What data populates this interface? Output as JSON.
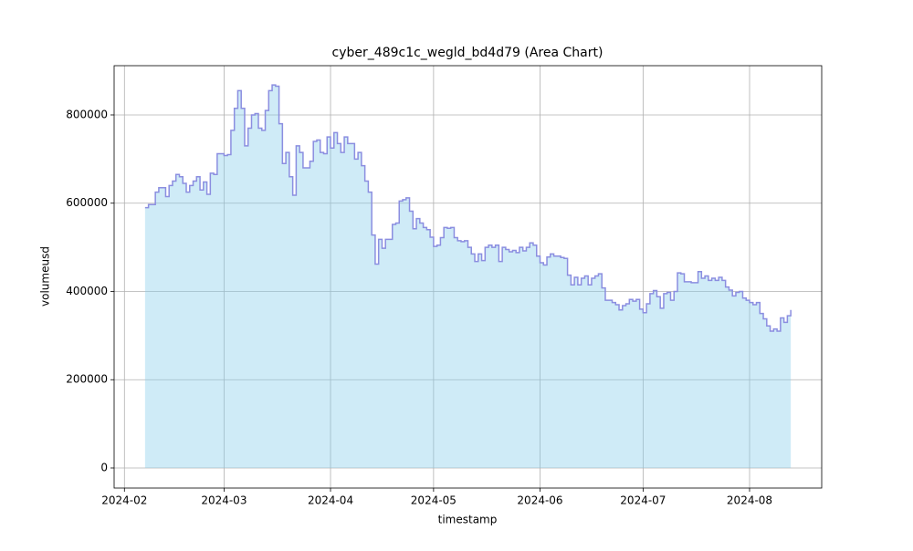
{
  "chart_data": {
    "type": "area",
    "step": "post",
    "title": "cyber_489c1c_wegld_bd4d79 (Area Chart)",
    "xlabel": "timestamp",
    "ylabel": "volumeusd",
    "x": [
      "2024-02-07",
      "2024-02-08",
      "2024-02-09",
      "2024-02-10",
      "2024-02-11",
      "2024-02-12",
      "2024-02-13",
      "2024-02-14",
      "2024-02-15",
      "2024-02-16",
      "2024-02-17",
      "2024-02-18",
      "2024-02-19",
      "2024-02-20",
      "2024-02-21",
      "2024-02-22",
      "2024-02-23",
      "2024-02-24",
      "2024-02-25",
      "2024-02-26",
      "2024-02-27",
      "2024-02-28",
      "2024-02-29",
      "2024-03-01",
      "2024-03-02",
      "2024-03-03",
      "2024-03-04",
      "2024-03-05",
      "2024-03-06",
      "2024-03-07",
      "2024-03-08",
      "2024-03-09",
      "2024-03-10",
      "2024-03-11",
      "2024-03-12",
      "2024-03-13",
      "2024-03-14",
      "2024-03-15",
      "2024-03-16",
      "2024-03-17",
      "2024-03-18",
      "2024-03-19",
      "2024-03-20",
      "2024-03-21",
      "2024-03-22",
      "2024-03-23",
      "2024-03-24",
      "2024-03-25",
      "2024-03-26",
      "2024-03-27",
      "2024-03-28",
      "2024-03-29",
      "2024-03-30",
      "2024-03-31",
      "2024-04-01",
      "2024-04-02",
      "2024-04-03",
      "2024-04-04",
      "2024-04-05",
      "2024-04-06",
      "2024-04-07",
      "2024-04-08",
      "2024-04-09",
      "2024-04-10",
      "2024-04-11",
      "2024-04-12",
      "2024-04-13",
      "2024-04-14",
      "2024-04-15",
      "2024-04-16",
      "2024-04-17",
      "2024-04-18",
      "2024-04-19",
      "2024-04-20",
      "2024-04-21",
      "2024-04-22",
      "2024-04-23",
      "2024-04-24",
      "2024-04-25",
      "2024-04-26",
      "2024-04-27",
      "2024-04-28",
      "2024-04-29",
      "2024-04-30",
      "2024-05-01",
      "2024-05-02",
      "2024-05-03",
      "2024-05-04",
      "2024-05-05",
      "2024-05-06",
      "2024-05-07",
      "2024-05-08",
      "2024-05-09",
      "2024-05-10",
      "2024-05-11",
      "2024-05-12",
      "2024-05-13",
      "2024-05-14",
      "2024-05-15",
      "2024-05-16",
      "2024-05-17",
      "2024-05-18",
      "2024-05-19",
      "2024-05-20",
      "2024-05-21",
      "2024-05-22",
      "2024-05-23",
      "2024-05-24",
      "2024-05-25",
      "2024-05-26",
      "2024-05-27",
      "2024-05-28",
      "2024-05-29",
      "2024-05-30",
      "2024-05-31",
      "2024-06-01",
      "2024-06-02",
      "2024-06-03",
      "2024-06-04",
      "2024-06-05",
      "2024-06-06",
      "2024-06-07",
      "2024-06-08",
      "2024-06-09",
      "2024-06-10",
      "2024-06-11",
      "2024-06-12",
      "2024-06-13",
      "2024-06-14",
      "2024-06-15",
      "2024-06-16",
      "2024-06-17",
      "2024-06-18",
      "2024-06-19",
      "2024-06-20",
      "2024-06-21",
      "2024-06-22",
      "2024-06-23",
      "2024-06-24",
      "2024-06-25",
      "2024-06-26",
      "2024-06-27",
      "2024-06-28",
      "2024-06-29",
      "2024-06-30",
      "2024-07-01",
      "2024-07-02",
      "2024-07-03",
      "2024-07-04",
      "2024-07-05",
      "2024-07-06",
      "2024-07-07",
      "2024-07-08",
      "2024-07-09",
      "2024-07-10",
      "2024-07-11",
      "2024-07-12",
      "2024-07-13",
      "2024-07-14",
      "2024-07-15",
      "2024-07-16",
      "2024-07-17",
      "2024-07-18",
      "2024-07-19",
      "2024-07-20",
      "2024-07-21",
      "2024-07-22",
      "2024-07-23",
      "2024-07-24",
      "2024-07-25",
      "2024-07-26",
      "2024-07-27",
      "2024-07-28",
      "2024-07-29",
      "2024-07-30",
      "2024-07-31",
      "2024-08-01",
      "2024-08-02",
      "2024-08-03",
      "2024-08-04",
      "2024-08-05",
      "2024-08-06",
      "2024-08-07",
      "2024-08-08",
      "2024-08-09",
      "2024-08-10",
      "2024-08-11",
      "2024-08-12",
      "2024-08-13"
    ],
    "series": [
      {
        "name": "volumeusd",
        "color": "#8b8ee0",
        "fill": "#87ceeb",
        "fill_alpha": 0.4,
        "values": [
          590000,
          597000,
          597000,
          625000,
          635000,
          635000,
          615000,
          640000,
          650000,
          665000,
          660000,
          645000,
          625000,
          640000,
          650000,
          660000,
          630000,
          648000,
          620000,
          668000,
          665000,
          712000,
          712000,
          708000,
          710000,
          765000,
          815000,
          855000,
          815000,
          730000,
          770000,
          800000,
          803000,
          770000,
          765000,
          810000,
          855000,
          868000,
          865000,
          780000,
          690000,
          715000,
          660000,
          618000,
          730000,
          715000,
          680000,
          680000,
          695000,
          740000,
          743000,
          715000,
          712000,
          750000,
          725000,
          760000,
          735000,
          715000,
          750000,
          735000,
          735000,
          700000,
          715000,
          685000,
          650000,
          625000,
          528000,
          462000,
          518000,
          498000,
          518000,
          518000,
          552000,
          555000,
          605000,
          608000,
          612000,
          582000,
          542000,
          565000,
          555000,
          545000,
          540000,
          523000,
          502000,
          505000,
          522000,
          545000,
          543000,
          545000,
          522000,
          515000,
          513000,
          515000,
          500000,
          485000,
          468000,
          485000,
          470000,
          500000,
          505000,
          500000,
          505000,
          468000,
          500000,
          495000,
          490000,
          493000,
          488000,
          500000,
          492000,
          500000,
          510000,
          505000,
          480000,
          465000,
          460000,
          478000,
          485000,
          480000,
          480000,
          477000,
          475000,
          437000,
          415000,
          432000,
          415000,
          430000,
          435000,
          415000,
          430000,
          435000,
          440000,
          408000,
          380000,
          380000,
          375000,
          370000,
          358000,
          368000,
          372000,
          382000,
          378000,
          382000,
          360000,
          352000,
          372000,
          395000,
          402000,
          388000,
          362000,
          395000,
          398000,
          380000,
          400000,
          442000,
          440000,
          422000,
          422000,
          420000,
          420000,
          445000,
          430000,
          435000,
          425000,
          430000,
          425000,
          432000,
          425000,
          410000,
          403000,
          390000,
          398000,
          400000,
          385000,
          380000,
          375000,
          370000,
          375000,
          350000,
          338000,
          322000,
          310000,
          315000,
          310000,
          340000,
          330000,
          345000,
          358000
        ]
      }
    ],
    "xlim": [
      "2024-01-29",
      "2024-08-22"
    ],
    "xticks": [
      {
        "value": "2024-02-01",
        "label": "2024-02"
      },
      {
        "value": "2024-03-01",
        "label": "2024-03"
      },
      {
        "value": "2024-04-01",
        "label": "2024-04"
      },
      {
        "value": "2024-05-01",
        "label": "2024-05"
      },
      {
        "value": "2024-06-01",
        "label": "2024-06"
      },
      {
        "value": "2024-07-01",
        "label": "2024-07"
      },
      {
        "value": "2024-08-01",
        "label": "2024-08"
      }
    ],
    "ylim": [
      -45500,
      911600
    ],
    "yticks": [
      0,
      200000,
      400000,
      600000,
      800000
    ],
    "grid": true
  }
}
